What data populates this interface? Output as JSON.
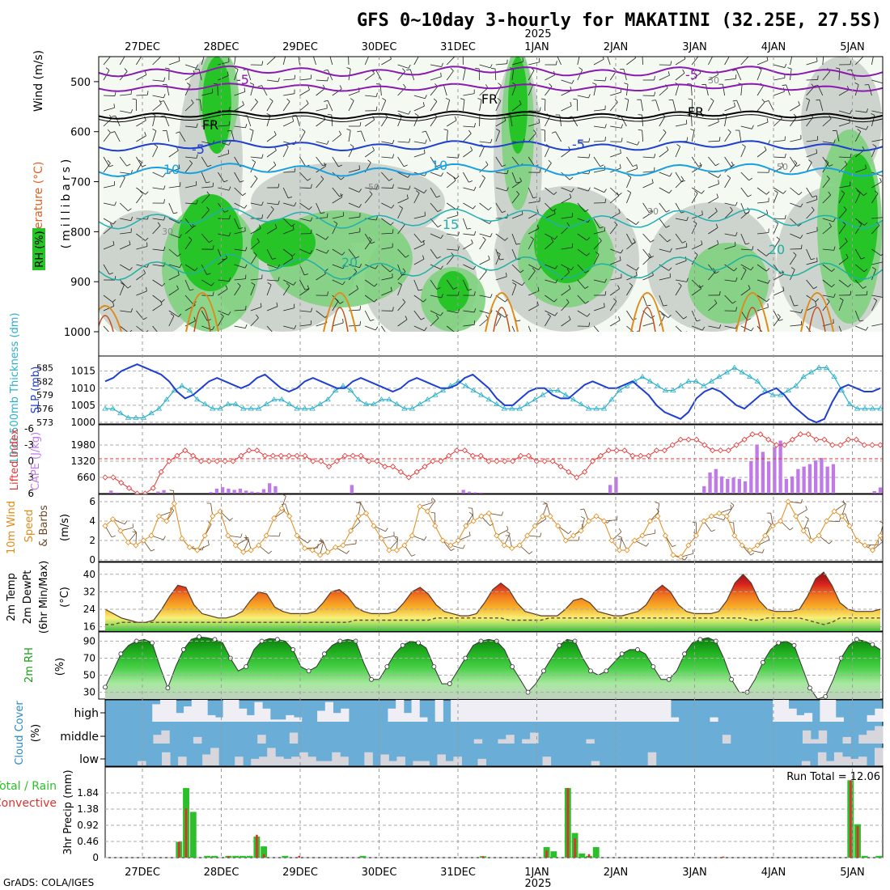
{
  "title": "GFS 0~10day 3-hourly for MAKATINI (32.25E, 27.5S)",
  "footer": "GrADS: COLA/IGES",
  "days": [
    "27DEC",
    "28DEC",
    "29DEC",
    "30DEC",
    "31DEC",
    "1JAN",
    "2JAN",
    "3JAN",
    "4JAN",
    "5JAN"
  ],
  "year": "2025",
  "year_under_day_index": 5,
  "colors": {
    "rh_light": "#e6f4e0",
    "rh_mid": "#b8dcb0",
    "rh_high": "#27c427",
    "rh_gray": "#c9cfc9",
    "slp": "#1f3fcf",
    "thickness": "#2bb0c8",
    "lifted": "#e23232",
    "cape": "#c07ae8",
    "wind": "#e08a1a",
    "temp_hi": "#c81d1d",
    "temp_lo": "#7ec843",
    "rh2m": "#16a016",
    "cloud_sky": "#6aaed8",
    "cloud": "#eeeef2",
    "precip_total": "#2bbf2b",
    "precip_conv": "#e03030"
  },
  "panels": {
    "upper": {
      "ylabel_main": "Wind (m/s)",
      "ylabel_temp": "Temperature (°C)",
      "ylabel_rh": "RH (%)",
      "yaxis": "(millibars)",
      "pressure_ticks": [
        "500",
        "600",
        "700",
        "800",
        "900",
        "1000"
      ],
      "contours": [
        {
          "label": "-5",
          "color": "#8a1ab0"
        },
        {
          "label": "FR",
          "color": "#000000"
        },
        {
          "label": "-5",
          "color": "#1f3fcf"
        },
        {
          "label": "10",
          "color": "#1aa0e0"
        },
        {
          "label": "15",
          "color": "#20b0b0"
        },
        {
          "label": "20",
          "color": "#20b0a0"
        }
      ],
      "rh_labels": [
        "30",
        "50",
        "30",
        "50",
        "30"
      ]
    },
    "slp": {
      "ylabel_left": "1000-500mb Thickness (dm)",
      "ylabel_right": "SLP (mb)",
      "thickness_ticks": [
        "585",
        "582",
        "579",
        "576",
        "573"
      ],
      "slp_ticks": [
        "1015",
        "1010",
        "1005",
        "1000"
      ],
      "slp_ylim": [
        1000,
        1018
      ],
      "thickness_ylim": [
        573,
        586.5
      ]
    },
    "cape": {
      "ylabel_left": "Lifted Index",
      "ylabel_right": "CAPE (J/kg)",
      "li_ticks": [
        "-6",
        "-3",
        "0",
        "3",
        "6"
      ],
      "cape_ticks": [
        "1980",
        "1320",
        "660"
      ],
      "cape_ylim": [
        0,
        2640
      ],
      "li_ylim": [
        6,
        -6
      ]
    },
    "wind": {
      "ylabel_a": "10m Wind",
      "ylabel_b": "Speed",
      "ylabel_c": "& Barbs",
      "ylabel_d": "(m/s)",
      "ticks": [
        "6",
        "4",
        "2",
        "0"
      ],
      "ylim": [
        0,
        6.5
      ]
    },
    "temp": {
      "ylabel_a": "2m Temp",
      "ylabel_b": "2m DewPt",
      "ylabel_c": "(6hr Min/Max)",
      "ylabel_d": "(°C)",
      "ticks": [
        "40",
        "32",
        "24",
        "16"
      ],
      "ylim": [
        14,
        44
      ]
    },
    "rh": {
      "ylabel": "2m RH",
      "unit": "(%)",
      "ticks": [
        "90",
        "70",
        "50",
        "30"
      ],
      "ylim": [
        22,
        98
      ]
    },
    "cloud": {
      "ylabel": "Cloud Cover",
      "unit": "(%)",
      "levels": [
        "high",
        "middle",
        "low"
      ]
    },
    "precip": {
      "ylabel_a": "Total / Rain",
      "ylabel_b": "Convective",
      "ylabel_c": "3hr Precip (mm)",
      "ticks": [
        "1.84",
        "1.38",
        "0.92",
        "0.46",
        "0"
      ],
      "ylim": [
        0,
        2.3
      ],
      "run_total_label": "Run Total = 12.06"
    }
  },
  "chart_data": {
    "type": "line",
    "x_unit": "3-hourly steps from 26DEC 12Z",
    "slp": [
      1012,
      1013,
      1015,
      1016,
      1017,
      1016,
      1015,
      1014,
      1012,
      1009,
      1007,
      1008,
      1010,
      1012,
      1013,
      1012,
      1011,
      1010,
      1011,
      1013,
      1014,
      1012,
      1010,
      1009,
      1010,
      1012,
      1013,
      1012,
      1011,
      1010,
      1010,
      1012,
      1013,
      1012,
      1011,
      1010,
      1009,
      1010,
      1012,
      1013,
      1012,
      1011,
      1010,
      1010,
      1011,
      1013,
      1014,
      1012,
      1010,
      1007,
      1005,
      1005,
      1007,
      1009,
      1010,
      1010,
      1008,
      1007,
      1007,
      1009,
      1011,
      1012,
      1011,
      1010,
      1010,
      1011,
      1012,
      1010,
      1008,
      1005,
      1003,
      1002,
      1001,
      1003,
      1007,
      1009,
      1010,
      1009,
      1007,
      1005,
      1004,
      1006,
      1008,
      1009,
      1010,
      1008,
      1005,
      1003,
      1001,
      1000,
      1001,
      1006,
      1010,
      1011,
      1010,
      1009,
      1009,
      1010
    ],
    "thickness": [
      576,
      576,
      575,
      574,
      574,
      574,
      575,
      576,
      578,
      580,
      581,
      580,
      578,
      577,
      576,
      576,
      577,
      577,
      576,
      576,
      576,
      577,
      578,
      578,
      577,
      576,
      576,
      576,
      577,
      578,
      580,
      581,
      580,
      578,
      577,
      577,
      578,
      578,
      577,
      576,
      576,
      577,
      578,
      579,
      580,
      581,
      582,
      581,
      580,
      579,
      578,
      577,
      576,
      576,
      576,
      577,
      578,
      579,
      580,
      580,
      579,
      578,
      577,
      576,
      576,
      576,
      578,
      580,
      581,
      582,
      583,
      582,
      581,
      580,
      580,
      581,
      582,
      582,
      581,
      582,
      583,
      584,
      585,
      584,
      583,
      582,
      580,
      579,
      579,
      580,
      581,
      583,
      584,
      585,
      585,
      583,
      580,
      577,
      576,
      576,
      576,
      576
    ],
    "lifted_index": [
      3,
      3,
      4,
      5,
      6,
      6,
      5,
      2,
      0,
      -1,
      -2,
      -1,
      0,
      0,
      0,
      0,
      0,
      -1,
      -2,
      -2,
      -1,
      -1,
      -1,
      -1,
      -1,
      -1,
      0,
      0,
      1,
      0,
      -1,
      -1,
      -1,
      0,
      0,
      1,
      1,
      2,
      3,
      2,
      1,
      0,
      0,
      -1,
      -2,
      -2,
      -1,
      -1,
      0,
      0,
      0,
      0,
      -1,
      -1,
      0,
      0,
      0,
      1,
      2,
      3,
      2,
      0,
      -1,
      -2,
      -2,
      -2,
      -1,
      -1,
      -1,
      -2,
      -2,
      -3,
      -4,
      -4,
      -4,
      -3,
      -2,
      -2,
      -2,
      -3,
      -4,
      -5,
      -5,
      -4,
      -3,
      -3,
      -4,
      -5,
      -5,
      -4,
      -4,
      -3,
      -3,
      -4,
      -4,
      -3,
      -3,
      -3
    ],
    "cape": [
      0,
      120,
      40,
      0,
      0,
      0,
      0,
      0,
      0,
      80,
      140,
      0,
      0,
      0,
      0,
      0,
      0,
      0,
      60,
      200,
      260,
      200,
      150,
      200,
      120,
      80,
      60,
      180,
      420,
      300,
      0,
      0,
      0,
      0,
      0,
      0,
      0,
      0,
      0,
      0,
      0,
      0,
      350,
      0,
      0,
      0,
      0,
      0,
      0,
      0,
      0,
      0,
      0,
      0,
      0,
      0,
      0,
      0,
      0,
      0,
      0,
      150,
      80,
      50,
      40,
      0,
      0,
      0,
      0,
      0,
      0,
      0,
      0,
      0,
      0,
      0,
      0,
      0,
      0,
      0,
      0,
      0,
      0,
      0,
      0,
      0,
      350,
      680,
      0,
      0,
      0,
      0,
      0,
      0,
      0,
      0,
      0,
      0,
      0,
      0,
      0,
      0,
      300,
      860,
      1000,
      700,
      600,
      650,
      600,
      500,
      1320,
      2000,
      1700,
      1300,
      1900,
      2160,
      600,
      700,
      1000,
      1100,
      1200,
      1350,
      1450,
      1100,
      1200,
      0,
      0,
      0,
      0,
      0,
      0,
      100,
      250
    ],
    "wind_speed": [
      3.5,
      4.2,
      3.0,
      1.8,
      1.5,
      2.0,
      2.5,
      4.5,
      4.0,
      5.8,
      2.2,
      1.3,
      1.0,
      2.5,
      4.5,
      5.0,
      2.5,
      1.5,
      0.8,
      1.0,
      1.5,
      2.5,
      4.3,
      5.3,
      4.5,
      2.5,
      1.2,
      1.0,
      0.5,
      0.8,
      1.3,
      1.5,
      3.0,
      4.5,
      4.8,
      3.5,
      2.2,
      1.0,
      1.0,
      1.5,
      2.5,
      5.5,
      5.0,
      3.5,
      2.0,
      1.5,
      2.0,
      3.5,
      4.0,
      4.5,
      4.8,
      2.5,
      1.5,
      1.2,
      1.5,
      2.5,
      3.5,
      4.5,
      4.5,
      3.5,
      2.0,
      2.5,
      3.0,
      4.0,
      4.5,
      4.0,
      2.0,
      1.0,
      1.0,
      2.0,
      2.5,
      4.0,
      4.5,
      2.5,
      0.5,
      0.3,
      1.5,
      2.5,
      4.0,
      4.5,
      4.8,
      4.5,
      2.5,
      1.5,
      1.0,
      1.5,
      2.5,
      3.5,
      4.0,
      6.0,
      4.5,
      3.0,
      2.0,
      2.5,
      4.0,
      5.0,
      4.5,
      3.5,
      2.0,
      1.5,
      1.0,
      2.5
    ],
    "temp": [
      24,
      22,
      20,
      19,
      18,
      18,
      19,
      24,
      30,
      35,
      34,
      26,
      22,
      21,
      20,
      20,
      21,
      23,
      28,
      32,
      31,
      25,
      23,
      22,
      22,
      22,
      23,
      27,
      32,
      33,
      30,
      25,
      23,
      22,
      22,
      22,
      23,
      27,
      32,
      34,
      31,
      26,
      23,
      22,
      21,
      21,
      22,
      27,
      33,
      36,
      33,
      27,
      23,
      22,
      21,
      21,
      21,
      24,
      28,
      29,
      27,
      23,
      22,
      21,
      21,
      22,
      23,
      26,
      32,
      35,
      32,
      26,
      23,
      22,
      22,
      22,
      23,
      28,
      36,
      40,
      36,
      28,
      24,
      23,
      23,
      23,
      24,
      30,
      38,
      41,
      35,
      27,
      24,
      23,
      23,
      23,
      24
    ],
    "dewpoint": [
      17,
      17,
      18,
      18,
      18,
      18,
      18,
      18,
      18,
      18,
      18,
      18,
      18,
      18,
      18,
      18,
      18,
      18,
      18,
      18,
      18,
      18,
      18,
      18,
      18,
      18,
      18,
      18,
      18,
      18,
      18,
      19,
      19,
      19,
      19,
      19,
      19,
      19,
      19,
      19,
      19,
      20,
      20,
      20,
      20,
      20,
      20,
      20,
      20,
      20,
      19,
      19,
      19,
      19,
      19,
      20,
      20,
      20,
      20,
      20,
      20,
      20,
      20,
      20,
      20,
      20,
      20,
      20,
      20,
      20,
      20,
      20,
      20,
      20,
      20,
      20,
      20,
      20,
      20,
      20,
      19,
      19,
      20,
      20,
      20,
      20,
      20,
      19,
      18,
      17,
      18,
      20,
      20,
      20,
      20,
      20,
      20
    ],
    "rh2m": [
      36,
      55,
      75,
      85,
      90,
      92,
      88,
      60,
      35,
      60,
      80,
      92,
      95,
      94,
      92,
      88,
      70,
      55,
      60,
      80,
      90,
      93,
      92,
      90,
      80,
      60,
      55,
      60,
      75,
      85,
      90,
      92,
      90,
      65,
      45,
      45,
      60,
      75,
      85,
      90,
      88,
      82,
      60,
      40,
      40,
      55,
      70,
      85,
      90,
      92,
      90,
      80,
      60,
      45,
      30,
      40,
      55,
      70,
      85,
      92,
      90,
      70,
      55,
      50,
      55,
      65,
      75,
      80,
      80,
      75,
      60,
      45,
      45,
      55,
      75,
      88,
      92,
      94,
      90,
      70,
      45,
      30,
      30,
      45,
      65,
      80,
      88,
      90,
      85,
      60,
      35,
      22,
      25,
      45,
      70,
      85,
      92,
      90,
      86,
      80
    ],
    "precip_total": [
      0,
      0,
      0,
      0,
      0,
      0,
      0,
      0,
      0,
      0,
      0.45,
      1.98,
      1.3,
      0,
      0.05,
      0.05,
      0,
      0.05,
      0.05,
      0.05,
      0.05,
      0.6,
      0.32,
      0,
      0,
      0.05,
      0,
      0,
      0,
      0,
      0,
      0,
      0,
      0,
      0,
      0,
      0.05,
      0,
      0,
      0,
      0,
      0,
      0,
      0,
      0,
      0,
      0,
      0,
      0,
      0,
      0,
      0,
      0,
      0.04,
      0,
      0,
      0,
      0,
      0,
      0,
      0,
      0,
      0.3,
      0.18,
      0,
      1.98,
      0.7,
      0.12,
      0.05,
      0.3,
      0,
      0,
      0,
      0,
      0,
      0,
      0,
      0,
      0,
      0,
      0,
      0,
      0,
      0,
      0,
      0,
      0,
      0,
      0,
      0,
      0,
      0,
      0,
      0,
      0,
      0,
      0,
      0,
      0,
      0,
      0,
      0,
      0,
      0,
      0,
      2.2,
      0.95,
      0.05,
      0,
      0.05
    ],
    "precip_conv": [
      0,
      0,
      0,
      0,
      0,
      0,
      0,
      0,
      0,
      0,
      0.45,
      1.4,
      0,
      0,
      0,
      0,
      0,
      0.04,
      0,
      0,
      0,
      0.65,
      0.1,
      0,
      0,
      0,
      0,
      0.05,
      0,
      0,
      0,
      0,
      0,
      0,
      0,
      0,
      0,
      0,
      0,
      0,
      0,
      0,
      0,
      0,
      0,
      0,
      0,
      0,
      0,
      0,
      0,
      0,
      0,
      0.04,
      0,
      0,
      0,
      0,
      0,
      0,
      0,
      0,
      0.2,
      0,
      0,
      1.98,
      0.55,
      0,
      0.1,
      0,
      0,
      0,
      0,
      0,
      0,
      0,
      0,
      0,
      0,
      0,
      0,
      0,
      0,
      0,
      0,
      0,
      0,
      0.03,
      0,
      0,
      0,
      0,
      0,
      0,
      0,
      0,
      0,
      0,
      0,
      0,
      0,
      0,
      0,
      0,
      0,
      2.2,
      0.9,
      0,
      0,
      0
    ],
    "cloud_high": [
      0,
      0,
      0,
      0,
      0,
      0,
      80,
      100,
      100,
      40,
      70,
      100,
      100,
      30,
      20,
      100,
      100,
      60,
      30,
      90,
      60,
      10,
      10,
      30,
      20,
      0,
      0,
      50,
      90,
      40,
      60,
      0,
      0,
      0,
      0,
      0,
      60,
      100,
      40,
      100,
      20,
      0,
      100,
      0,
      100,
      100,
      100,
      100,
      100,
      100,
      100,
      100,
      100,
      100,
      100,
      100,
      100,
      100,
      100,
      100,
      100,
      100,
      100,
      100,
      100,
      100,
      100,
      100,
      100,
      100,
      100,
      100,
      20,
      0,
      0,
      0,
      0,
      20,
      0,
      0,
      0,
      0,
      0,
      0,
      0,
      100,
      100,
      60,
      30,
      40,
      0,
      100,
      100,
      20,
      0,
      0,
      0,
      30,
      60
    ],
    "cloud_mid": [
      0,
      0,
      0,
      0,
      0,
      0,
      40,
      60,
      0,
      0,
      0,
      30,
      0,
      0,
      0,
      0,
      0,
      0,
      0,
      40,
      0,
      0,
      0,
      50,
      0,
      0,
      0,
      0,
      0,
      0,
      0,
      0,
      0,
      0,
      0,
      0,
      0,
      0,
      0,
      0,
      0,
      0,
      0,
      0,
      0,
      0,
      20,
      0,
      0,
      20,
      40,
      0,
      20,
      50,
      0,
      0,
      0,
      0,
      0,
      0,
      20,
      0,
      0,
      0,
      0,
      0,
      0,
      0,
      0,
      0,
      0,
      0,
      0,
      0,
      0,
      0,
      0,
      40,
      0,
      0,
      0,
      0,
      0,
      0,
      0,
      0,
      0,
      60,
      20,
      60,
      0,
      0,
      30,
      0,
      40,
      60,
      80
    ],
    "cloud_low": [
      0,
      0,
      0,
      0,
      20,
      0,
      0,
      60,
      0,
      40,
      0,
      0,
      50,
      80,
      0,
      0,
      40,
      0,
      30,
      40,
      80,
      40,
      30,
      40,
      60,
      40,
      20,
      20,
      60,
      40,
      0,
      0,
      60,
      0,
      50,
      20,
      40,
      0,
      20,
      20,
      0,
      50,
      20,
      40,
      0,
      0,
      30,
      0,
      0,
      0,
      0,
      0,
      0,
      0,
      40,
      0,
      0,
      0,
      0,
      0,
      20,
      0,
      0,
      0,
      0,
      0,
      0,
      60,
      0,
      0,
      0,
      0,
      0,
      0,
      0,
      0,
      0,
      0,
      0,
      0,
      0,
      0,
      0,
      0,
      0,
      0,
      20,
      0,
      60,
      20,
      60,
      40,
      30,
      40,
      0,
      80
    ]
  }
}
